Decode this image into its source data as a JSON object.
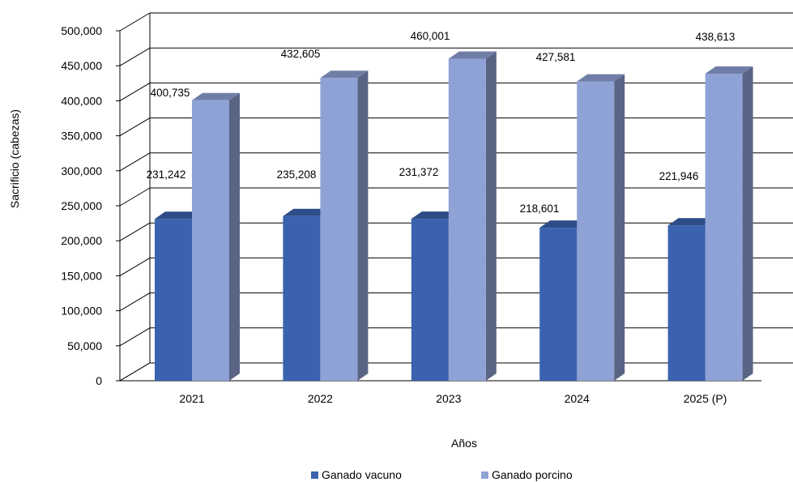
{
  "chart_data": {
    "type": "bar",
    "categories": [
      "2021",
      "2022",
      "2023",
      "2024",
      "2025 (P)"
    ],
    "series": [
      {
        "name": "Ganado vacuno",
        "values": [
          231242,
          235208,
          231372,
          218601,
          221946
        ],
        "labels": [
          "231,242",
          "235,208",
          "231,372",
          "218,601",
          "221,946"
        ],
        "color": "#3a62ae"
      },
      {
        "name": "Ganado porcino",
        "values": [
          400735,
          432605,
          460001,
          427581,
          438613
        ],
        "labels": [
          "400,735",
          "432,605",
          "460,001",
          "427,581",
          "438,613"
        ],
        "color": "#8fa2d6"
      }
    ],
    "xlabel": "Años",
    "ylabel": "Sacrificio (cabezas)",
    "ylim": [
      0,
      500000
    ],
    "yticks": [
      0,
      50000,
      100000,
      150000,
      200000,
      250000,
      300000,
      350000,
      400000,
      450000,
      500000
    ],
    "ytick_labels": [
      "0",
      "50,000",
      "100,000",
      "150,000",
      "200,000",
      "250,000",
      "300,000",
      "350,000",
      "400,000",
      "450,000",
      "500,000"
    ],
    "grid": true,
    "legend_position": "bottom"
  }
}
